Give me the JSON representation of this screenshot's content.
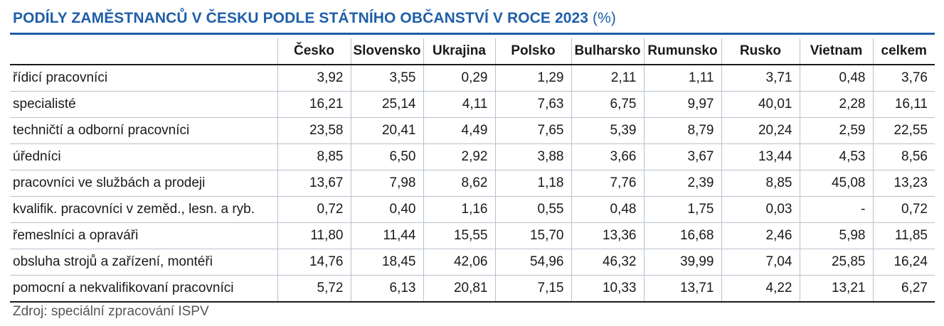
{
  "title": "PODÍLY ZAMĚSTNANCŮ V ČESKU PODLE STÁTNÍHO OBČANSTVÍ V ROCE 2023",
  "title_unit": "(%)",
  "source": "Zdroj: speciální zpracování ISPV",
  "colors": {
    "title": "#1f5fa8",
    "rule": "#1f5fa8",
    "grid": "#b8c2cc"
  },
  "chart_data": {
    "type": "table",
    "title": "PODÍLY ZAMĚSTNANCŮ V ČESKU PODLE STÁTNÍHO OBČANSTVÍ V ROCE 2023 (%)",
    "columns": [
      "Česko",
      "Slovensko",
      "Ukrajina",
      "Polsko",
      "Bulharsko",
      "Rumunsko",
      "Rusko",
      "Vietnam",
      "celkem"
    ],
    "rows": [
      {
        "label": "řídicí pracovníci",
        "values": [
          "3,92",
          "3,55",
          "0,29",
          "1,29",
          "2,11",
          "1,11",
          "3,71",
          "0,48",
          "3,76"
        ]
      },
      {
        "label": "specialisté",
        "values": [
          "16,21",
          "25,14",
          "4,11",
          "7,63",
          "6,75",
          "9,97",
          "40,01",
          "2,28",
          "16,11"
        ]
      },
      {
        "label": "techničtí a odborní pracovníci",
        "values": [
          "23,58",
          "20,41",
          "4,49",
          "7,65",
          "5,39",
          "8,79",
          "20,24",
          "2,59",
          "22,55"
        ]
      },
      {
        "label": "úředníci",
        "values": [
          "8,85",
          "6,50",
          "2,92",
          "3,88",
          "3,66",
          "3,67",
          "13,44",
          "4,53",
          "8,56"
        ]
      },
      {
        "label": "pracovníci ve službách a prodeji",
        "values": [
          "13,67",
          "7,98",
          "8,62",
          "1,18",
          "7,76",
          "2,39",
          "8,85",
          "45,08",
          "13,23"
        ]
      },
      {
        "label": "kvalifik. pracovníci v zeměd., lesn. a ryb.",
        "values": [
          "0,72",
          "0,40",
          "1,16",
          "0,55",
          "0,48",
          "1,75",
          "0,03",
          "-",
          "0,72"
        ]
      },
      {
        "label": "řemeslníci a opraváři",
        "values": [
          "11,80",
          "11,44",
          "15,55",
          "15,70",
          "13,36",
          "16,68",
          "2,46",
          "5,98",
          "11,85"
        ]
      },
      {
        "label": "obsluha strojů a zařízení, montéři",
        "values": [
          "14,76",
          "18,45",
          "42,06",
          "54,96",
          "46,32",
          "39,99",
          "7,04",
          "25,85",
          "16,24"
        ]
      },
      {
        "label": "pomocní a nekvalifikovaní pracovníci",
        "values": [
          "5,72",
          "6,13",
          "20,81",
          "7,15",
          "10,33",
          "13,71",
          "4,22",
          "13,21",
          "6,27"
        ]
      }
    ]
  }
}
